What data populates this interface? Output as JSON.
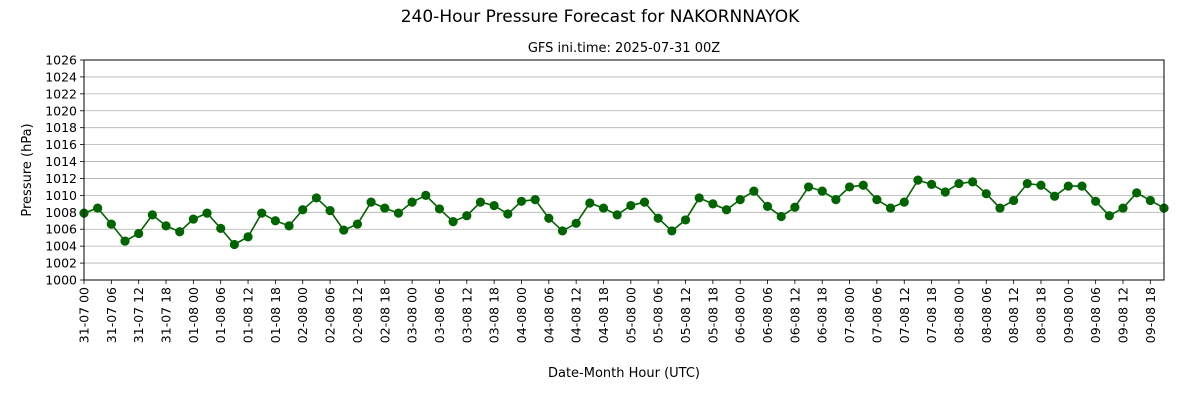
{
  "chart_data": {
    "type": "line",
    "title": "240-Hour Pressure Forecast for NAKORNNAYOK",
    "subtitle": "GFS ini.time: 2025-07-31 00Z",
    "xlabel": "Date-Month Hour (UTC)",
    "ylabel": "Pressure (hPa)",
    "ylim": [
      1000,
      1026
    ],
    "yticks": [
      1000,
      1002,
      1004,
      1006,
      1008,
      1010,
      1012,
      1014,
      1016,
      1018,
      1020,
      1022,
      1024,
      1026
    ],
    "grid": "horizontal",
    "legend": "none",
    "line_color": "#006400",
    "x_step_hours": 3,
    "xticks": [
      "31-07 00",
      "31-07 06",
      "31-07 12",
      "31-07 18",
      "01-08 00",
      "01-08 06",
      "01-08 12",
      "01-08 18",
      "02-08 00",
      "02-08 06",
      "02-08 12",
      "02-08 18",
      "03-08 00",
      "03-08 06",
      "03-08 12",
      "03-08 18",
      "04-08 00",
      "04-08 06",
      "04-08 12",
      "04-08 18",
      "05-08 00",
      "05-08 06",
      "05-08 12",
      "05-08 18",
      "06-08 00",
      "06-08 06",
      "06-08 12",
      "06-08 18",
      "07-08 00",
      "07-08 06",
      "07-08 12",
      "07-08 18",
      "08-08 00",
      "08-08 06",
      "08-08 12",
      "08-08 18",
      "09-08 00",
      "09-08 06",
      "09-08 12",
      "09-08 18"
    ],
    "series": [
      {
        "values": [
          1007.9,
          1008.5,
          1006.6,
          1004.6,
          1005.5,
          1007.7,
          1006.4,
          1005.7,
          1007.2,
          1007.9,
          1006.1,
          1004.2,
          1005.1,
          1007.9,
          1007.0,
          1006.4,
          1008.3,
          1009.7,
          1008.2,
          1005.9,
          1006.6,
          1009.2,
          1008.5,
          1007.9,
          1009.2,
          1010.0,
          1008.4,
          1006.9,
          1007.6,
          1009.2,
          1008.8,
          1007.8,
          1009.3,
          1009.5,
          1007.3,
          1005.8,
          1006.7,
          1009.1,
          1008.5,
          1007.7,
          1008.8,
          1009.2,
          1007.3,
          1005.8,
          1007.1,
          1009.7,
          1009.0,
          1008.3,
          1009.5,
          1010.5,
          1008.7,
          1007.5,
          1008.6,
          1011.0,
          1010.5,
          1009.5,
          1011.0,
          1011.2,
          1009.5,
          1008.5,
          1009.2,
          1011.8,
          1011.3,
          1010.4,
          1011.4,
          1011.6,
          1010.2,
          1008.5,
          1009.4,
          1011.4,
          1011.2,
          1009.9,
          1011.1,
          1011.1,
          1009.3,
          1007.6,
          1008.5,
          1010.3,
          1009.4,
          1008.5
        ]
      }
    ]
  }
}
